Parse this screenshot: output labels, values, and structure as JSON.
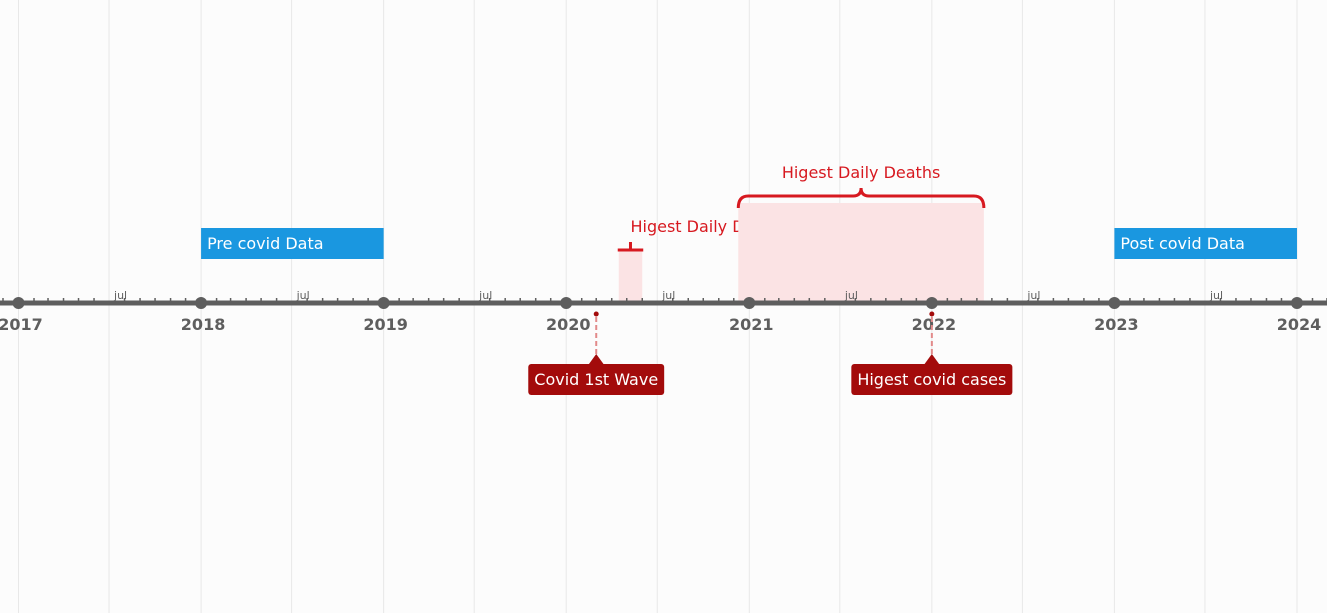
{
  "colors": {
    "background": "#fcfcfc",
    "axis": "#5e5e5e",
    "grid": "#e8e8e8",
    "range_blue": "#1a97e0",
    "range_text_light": "#ffffff",
    "highlight_red": "#d71920",
    "highlight_fill": "#fbe3e4",
    "milestone_red": "#a30b0b",
    "milestone_line": "#e28a8a"
  },
  "chart_data": {
    "type": "timeline",
    "x_range": [
      "2016-11-25",
      "2024-03-01"
    ],
    "years": [
      "2017",
      "2018",
      "2019",
      "2020",
      "2021",
      "2022",
      "2023",
      "2024"
    ],
    "mid_year_tick_label": "jul",
    "ranges": [
      {
        "label": "Pre covid Data",
        "start": "2018-01-01",
        "end": "2019-01-01"
      },
      {
        "label": "Post covid Data",
        "start": "2023-01-01",
        "end": "2024-01-01"
      }
    ],
    "highlighted_periods": [
      {
        "label": "Higest Daily Deaths",
        "start": "2020-04-15",
        "end": "2020-06-01"
      },
      {
        "label": "Higest Daily Deaths",
        "start": "2020-12-10",
        "end": "2022-04-15"
      }
    ],
    "milestones": [
      {
        "label": "Covid 1st Wave",
        "date": "2020-03-01"
      },
      {
        "label": "Higest covid cases",
        "date": "2022-01-01"
      }
    ]
  }
}
